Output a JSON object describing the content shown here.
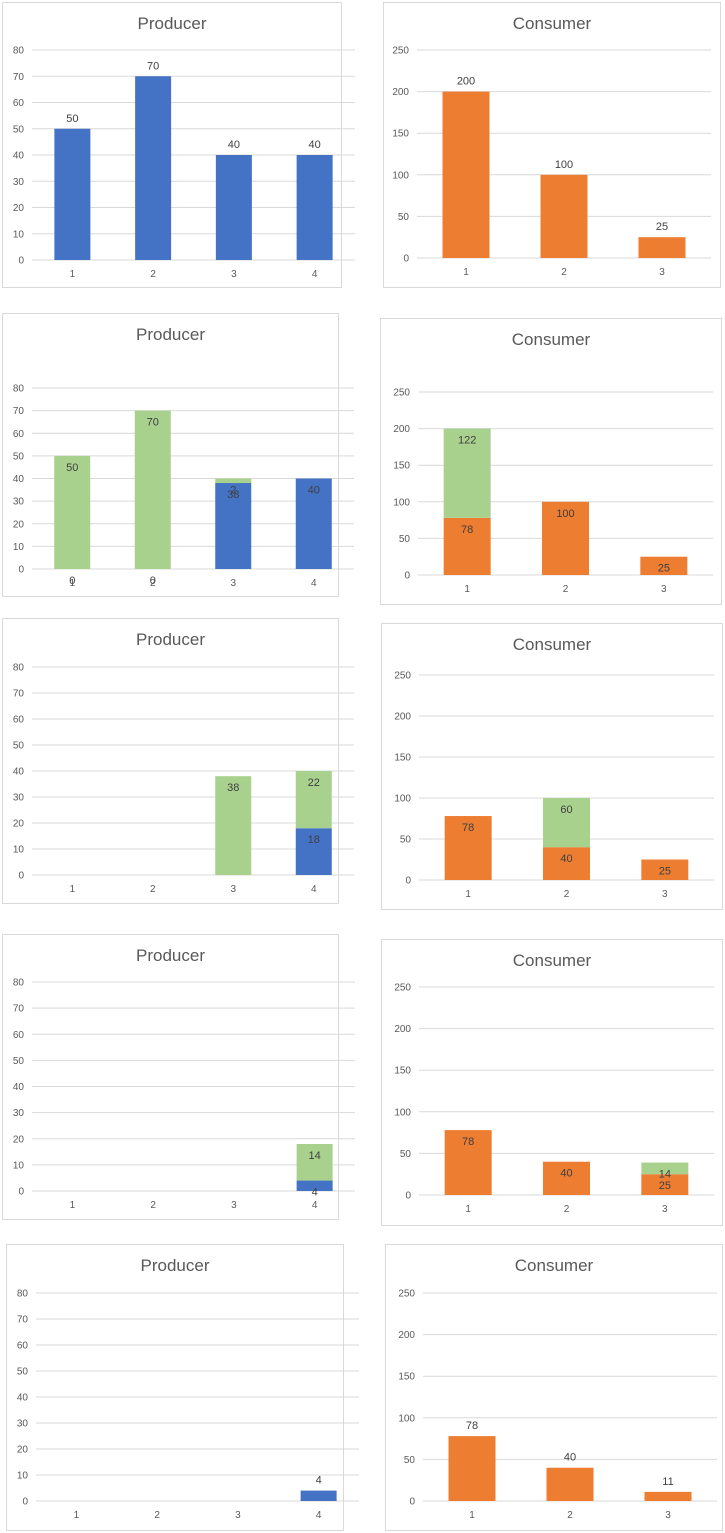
{
  "colors": {
    "producer_base": "#4472C4",
    "consumer_base": "#ED7D31",
    "highlight": "#A9D18E",
    "grid": "#d9d9d9",
    "axis_text": "#595959",
    "label_text": "#404040"
  },
  "chart_data": [
    {
      "type": "bar",
      "title": "Producer",
      "categories": [
        "1",
        "2",
        "3",
        "4"
      ],
      "ylim": [
        0,
        80
      ],
      "yticks": [
        0,
        10,
        20,
        30,
        40,
        50,
        60,
        70,
        80
      ],
      "stacked": true,
      "series": [
        {
          "values": [
            50,
            70,
            40,
            40
          ],
          "labels": [
            "50",
            "70",
            "40",
            "40"
          ],
          "color": "#4472C4"
        }
      ]
    },
    {
      "type": "bar",
      "title": "Consumer",
      "categories": [
        "1",
        "2",
        "3"
      ],
      "ylim": [
        0,
        250
      ],
      "yticks": [
        0,
        50,
        100,
        150,
        200,
        250
      ],
      "stacked": true,
      "series": [
        {
          "values": [
            200,
            100,
            25
          ],
          "labels": [
            "200",
            "100",
            "25"
          ],
          "color": "#ED7D31"
        }
      ]
    },
    {
      "type": "bar",
      "title": "Producer",
      "categories": [
        "1",
        "2",
        "3",
        "4"
      ],
      "ylim": [
        0,
        80
      ],
      "yticks": [
        0,
        10,
        20,
        30,
        40,
        50,
        60,
        70,
        80
      ],
      "stacked": true,
      "series": [
        {
          "values": [
            0,
            0,
            38,
            40
          ],
          "labels": [
            "0",
            "0",
            "38",
            "40"
          ],
          "color": "#4472C4"
        },
        {
          "values": [
            50,
            70,
            2,
            0
          ],
          "labels": [
            "50",
            "70",
            "2",
            ""
          ],
          "color": "#A9D18E"
        }
      ]
    },
    {
      "type": "bar",
      "title": "Consumer",
      "categories": [
        "1",
        "2",
        "3"
      ],
      "ylim": [
        0,
        250
      ],
      "yticks": [
        0,
        50,
        100,
        150,
        200,
        250
      ],
      "stacked": true,
      "series": [
        {
          "values": [
            78,
            100,
            25
          ],
          "labels": [
            "78",
            "100",
            "25"
          ],
          "color": "#ED7D31"
        },
        {
          "values": [
            122,
            0,
            0
          ],
          "labels": [
            "122",
            "",
            ""
          ],
          "color": "#A9D18E"
        }
      ]
    },
    {
      "type": "bar",
      "title": "Producer",
      "categories": [
        "1",
        "2",
        "3",
        "4"
      ],
      "ylim": [
        0,
        80
      ],
      "yticks": [
        0,
        10,
        20,
        30,
        40,
        50,
        60,
        70,
        80
      ],
      "stacked": true,
      "series": [
        {
          "values": [
            0,
            0,
            0,
            18
          ],
          "labels": [
            "",
            "",
            "",
            "18"
          ],
          "color": "#4472C4"
        },
        {
          "values": [
            0,
            0,
            38,
            22
          ],
          "labels": [
            "",
            "",
            "38",
            "22"
          ],
          "color": "#A9D18E"
        }
      ]
    },
    {
      "type": "bar",
      "title": "Consumer",
      "categories": [
        "1",
        "2",
        "3"
      ],
      "ylim": [
        0,
        250
      ],
      "yticks": [
        0,
        50,
        100,
        150,
        200,
        250
      ],
      "stacked": true,
      "series": [
        {
          "values": [
            78,
            40,
            25
          ],
          "labels": [
            "78",
            "40",
            "25"
          ],
          "color": "#ED7D31"
        },
        {
          "values": [
            0,
            60,
            0
          ],
          "labels": [
            "",
            "60",
            ""
          ],
          "color": "#A9D18E"
        }
      ]
    },
    {
      "type": "bar",
      "title": "Producer",
      "categories": [
        "1",
        "2",
        "3",
        "4"
      ],
      "ylim": [
        0,
        80
      ],
      "yticks": [
        0,
        10,
        20,
        30,
        40,
        50,
        60,
        70,
        80
      ],
      "stacked": true,
      "series": [
        {
          "values": [
            0,
            0,
            0,
            4
          ],
          "labels": [
            "",
            "",
            "",
            "4"
          ],
          "color": "#4472C4"
        },
        {
          "values": [
            0,
            0,
            0,
            14
          ],
          "labels": [
            "",
            "",
            "",
            "14"
          ],
          "color": "#A9D18E"
        }
      ]
    },
    {
      "type": "bar",
      "title": "Consumer",
      "categories": [
        "1",
        "2",
        "3"
      ],
      "ylim": [
        0,
        250
      ],
      "yticks": [
        0,
        50,
        100,
        150,
        200,
        250
      ],
      "stacked": true,
      "series": [
        {
          "values": [
            78,
            40,
            25
          ],
          "labels": [
            "78",
            "40",
            "25"
          ],
          "color": "#ED7D31"
        },
        {
          "values": [
            0,
            0,
            14
          ],
          "labels": [
            "",
            "",
            "14"
          ],
          "color": "#A9D18E"
        }
      ]
    },
    {
      "type": "bar",
      "title": "Producer",
      "categories": [
        "1",
        "2",
        "3",
        "4"
      ],
      "ylim": [
        0,
        80
      ],
      "yticks": [
        0,
        10,
        20,
        30,
        40,
        50,
        60,
        70,
        80
      ],
      "stacked": true,
      "label_position": "outside",
      "series": [
        {
          "values": [
            0,
            0,
            0,
            4
          ],
          "labels": [
            "",
            "",
            "",
            "4"
          ],
          "color": "#4472C4"
        }
      ]
    },
    {
      "type": "bar",
      "title": "Consumer",
      "categories": [
        "1",
        "2",
        "3"
      ],
      "ylim": [
        0,
        250
      ],
      "yticks": [
        0,
        50,
        100,
        150,
        200,
        250
      ],
      "stacked": true,
      "label_position": "outside",
      "series": [
        {
          "values": [
            78,
            40,
            11
          ],
          "labels": [
            "78",
            "40",
            "11"
          ],
          "color": "#ED7D31"
        }
      ]
    }
  ]
}
